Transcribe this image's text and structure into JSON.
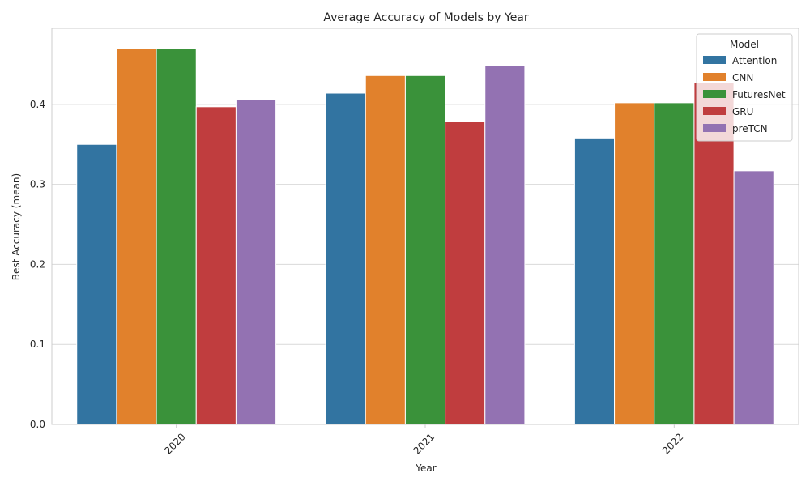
{
  "chart_data": {
    "type": "bar",
    "title": "Average Accuracy of Models by Year",
    "xlabel": "Year",
    "ylabel": "Best Accuracy (mean)",
    "categories": [
      "2020",
      "2021",
      "2022"
    ],
    "ylim": [
      0,
      0.495
    ],
    "yticks": [
      0.0,
      0.1,
      0.2,
      0.3,
      0.4
    ],
    "ytick_labels": [
      "0.0",
      "0.1",
      "0.2",
      "0.3",
      "0.4"
    ],
    "grid": true,
    "legend": {
      "title": "Model",
      "placement": "top-right"
    },
    "series": [
      {
        "name": "Attention",
        "color": "#3274a1",
        "values": [
          0.35,
          0.414,
          0.358
        ]
      },
      {
        "name": "CNN",
        "color": "#e1812c",
        "values": [
          0.47,
          0.436,
          0.402
        ]
      },
      {
        "name": "FuturesNet",
        "color": "#3a923a",
        "values": [
          0.47,
          0.436,
          0.402
        ]
      },
      {
        "name": "GRU",
        "color": "#c03d3e",
        "values": [
          0.397,
          0.379,
          0.427
        ]
      },
      {
        "name": "preTCN",
        "color": "#9372b2",
        "values": [
          0.406,
          0.448,
          0.317
        ]
      }
    ]
  }
}
